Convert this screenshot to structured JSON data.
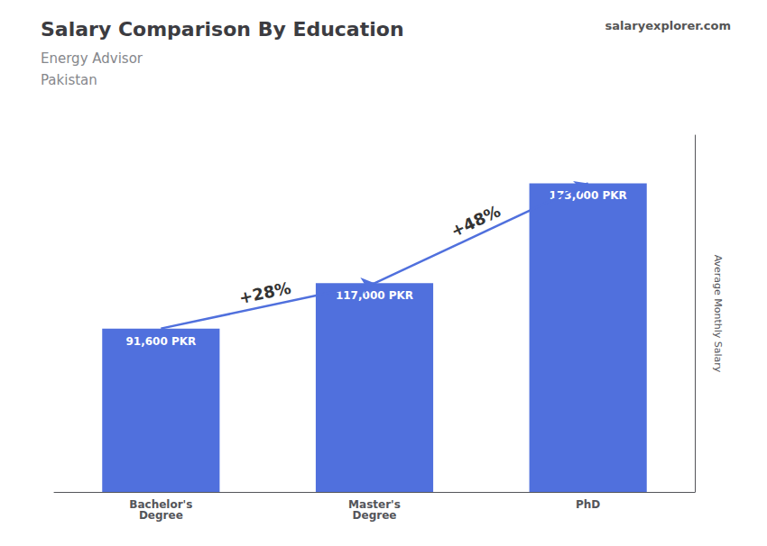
{
  "chart_data": {
    "type": "bar",
    "title": "Salary Comparison By Education",
    "subtitle": [
      "Energy Advisor",
      "Pakistan"
    ],
    "source": "salaryexplorer.com",
    "ylabel": "Average Monthly Salary",
    "categories": [
      "Bachelor's\nDegree",
      "Master's\nDegree",
      "PhD"
    ],
    "values": [
      91600,
      117000,
      173000
    ],
    "value_labels": [
      "91,600 PKR",
      "117,000 PKR",
      "173,000 PKR"
    ],
    "data_labels": true,
    "annotations": [
      "+28%",
      "+48%"
    ],
    "ylim": [
      0,
      200000
    ],
    "tick_labels": "x",
    "grid": false
  }
}
